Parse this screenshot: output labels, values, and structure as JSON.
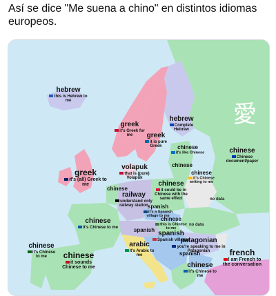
{
  "title": "Así se dice \"Me suena a chino\" en distintos idiomas europeos.",
  "glyph": "愛",
  "colors": {
    "sea": "#cfe8f5",
    "chinese": "#a9e2b4",
    "greek": "#f2a3b8",
    "hebrew": "#c9c9ee",
    "spanish": "#a5c8ee",
    "arabic": "#f3e48b",
    "railway": "#c7c2e3",
    "volapuk": "#f6d3e0",
    "french": "#e6a0d8",
    "nodata": "#e9e9e9"
  },
  "labels": [
    {
      "id": "hebrew-iceland",
      "head": "hebrew",
      "sub": "this is Hebrew to me",
      "flag": "#1d5fc2"
    },
    {
      "id": "greek-norway",
      "head": "greek",
      "sub": "it's Greek for me",
      "flag": "#c8102e"
    },
    {
      "id": "greek-sweden",
      "head": "greek",
      "sub": "it is pure Greek",
      "flag": "#006aa7"
    },
    {
      "id": "hebrew-finland",
      "head": "hebrew",
      "sub": "Complete Hebrew",
      "flag": "#0f47af"
    },
    {
      "id": "chinese-estonia",
      "head": "chinese",
      "sub": "it's like Chinese",
      "flag": "#0072ce"
    },
    {
      "id": "chinese-latvia",
      "head": "chinese",
      "sub": "",
      "flag": "#9e3039"
    },
    {
      "id": "chinese-russia",
      "head": "chinese",
      "sub": "Chinese document/paper",
      "flag": "#0039a6"
    },
    {
      "id": "greek-uk",
      "head": "greek",
      "sub": "it's (all) Greek to me",
      "flag": "#012169"
    },
    {
      "id": "volapuk-denmark",
      "head": "volapuk",
      "sub": "that is (pure) Volapük",
      "flag": "#c60c30"
    },
    {
      "id": "chinese-netherlands",
      "head": "chinese",
      "sub": "",
      "flag": "#ae1c28"
    },
    {
      "id": "chinese-lithuania",
      "head": "chinese",
      "sub": "it's Chinese writing to me",
      "flag": "#fdb913"
    },
    {
      "id": "chinese-poland",
      "head": "chinese",
      "sub": "it could be in Chinese with the same effect",
      "flag": "#dc143c"
    },
    {
      "id": "railway-germany",
      "head": "railway",
      "sub": "understand only railway station",
      "flag": "#000000"
    },
    {
      "id": "spanish-czech",
      "head": "spanish",
      "sub": "it's a Spanish village to me",
      "flag": "#11457e"
    },
    {
      "id": "chinese-hungary",
      "head": "chinese",
      "sub": "this is Chinese to me",
      "flag": "#477050"
    },
    {
      "id": "chinese-france",
      "head": "chinese",
      "sub": "it's Chinese to me",
      "flag": "#0055a4"
    },
    {
      "id": "spanish-croatia",
      "head": "spanish",
      "sub": "",
      "flag": "#171796"
    },
    {
      "id": "spanish-serbia",
      "head": "spanish",
      "sub": "Spanish villages",
      "flag": "#c6363c"
    },
    {
      "id": "patagonian-romania",
      "head": "patagonian",
      "sub": "you're speaking to me in Patagonian",
      "flag": "#002b7f"
    },
    {
      "id": "spanish-bulgaria",
      "head": "spanish",
      "sub": "",
      "flag": "#00966e"
    },
    {
      "id": "arabic-italy",
      "head": "arabic",
      "sub": "it's Arabic to me",
      "flag": "#009246"
    },
    {
      "id": "chinese-portugal",
      "head": "chinese",
      "sub": "it's Chinese to me",
      "flag": "#006600"
    },
    {
      "id": "chinese-spain",
      "head": "chinese",
      "sub": "it sounds Chinese to me",
      "flag": "#c60b1e"
    },
    {
      "id": "chinese-greece",
      "head": "chinese",
      "sub": "it's Chinese to me",
      "flag": "#0d5eaf"
    },
    {
      "id": "french-turkey",
      "head": "french",
      "sub": "I am French to the conversation",
      "flag": "#e30a17"
    }
  ],
  "nodata": [
    {
      "id": "nodata-belarus",
      "text": "no data"
    },
    {
      "id": "nodata-moldova",
      "text": "no data"
    }
  ]
}
